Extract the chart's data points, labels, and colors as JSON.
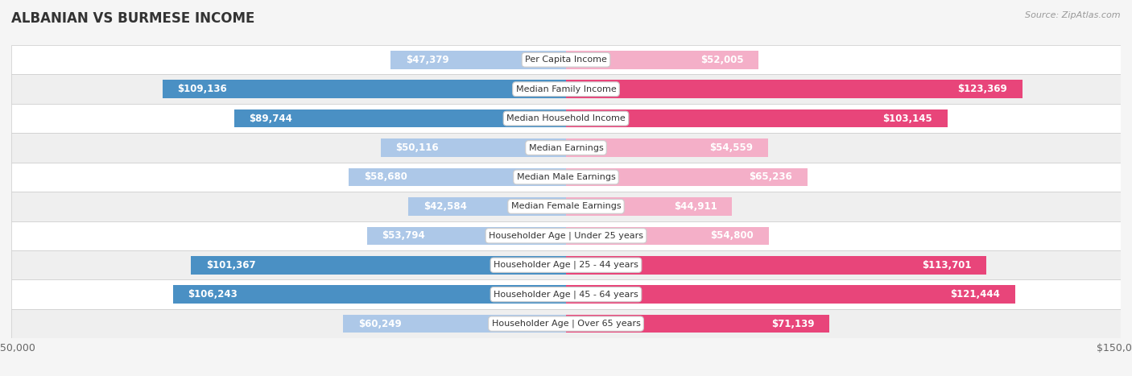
{
  "title": "ALBANIAN VS BURMESE INCOME",
  "source": "Source: ZipAtlas.com",
  "categories": [
    "Per Capita Income",
    "Median Family Income",
    "Median Household Income",
    "Median Earnings",
    "Median Male Earnings",
    "Median Female Earnings",
    "Householder Age | Under 25 years",
    "Householder Age | 25 - 44 years",
    "Householder Age | 45 - 64 years",
    "Householder Age | Over 65 years"
  ],
  "albanian_values": [
    47379,
    109136,
    89744,
    50116,
    58680,
    42584,
    53794,
    101367,
    106243,
    60249
  ],
  "burmese_values": [
    52005,
    123369,
    103145,
    54559,
    65236,
    44911,
    54800,
    113701,
    121444,
    71139
  ],
  "albanian_labels": [
    "$47,379",
    "$109,136",
    "$89,744",
    "$50,116",
    "$58,680",
    "$42,584",
    "$53,794",
    "$101,367",
    "$106,243",
    "$60,249"
  ],
  "burmese_labels": [
    "$52,005",
    "$123,369",
    "$103,145",
    "$54,559",
    "$65,236",
    "$44,911",
    "$54,800",
    "$113,701",
    "$121,444",
    "$71,139"
  ],
  "albanian_color_light": "#adc8e8",
  "albanian_color_dark": "#4a90c4",
  "burmese_color_light": "#f4afc8",
  "burmese_color_dark": "#e8457a",
  "bar_height": 0.62,
  "max_value": 150000,
  "background_color": "#f5f5f5",
  "row_bg_even": "#ffffff",
  "row_bg_odd": "#efefef",
  "label_fontsize": 8.5,
  "title_fontsize": 12,
  "category_fontsize": 8.0,
  "inside_label_threshold": 70000
}
